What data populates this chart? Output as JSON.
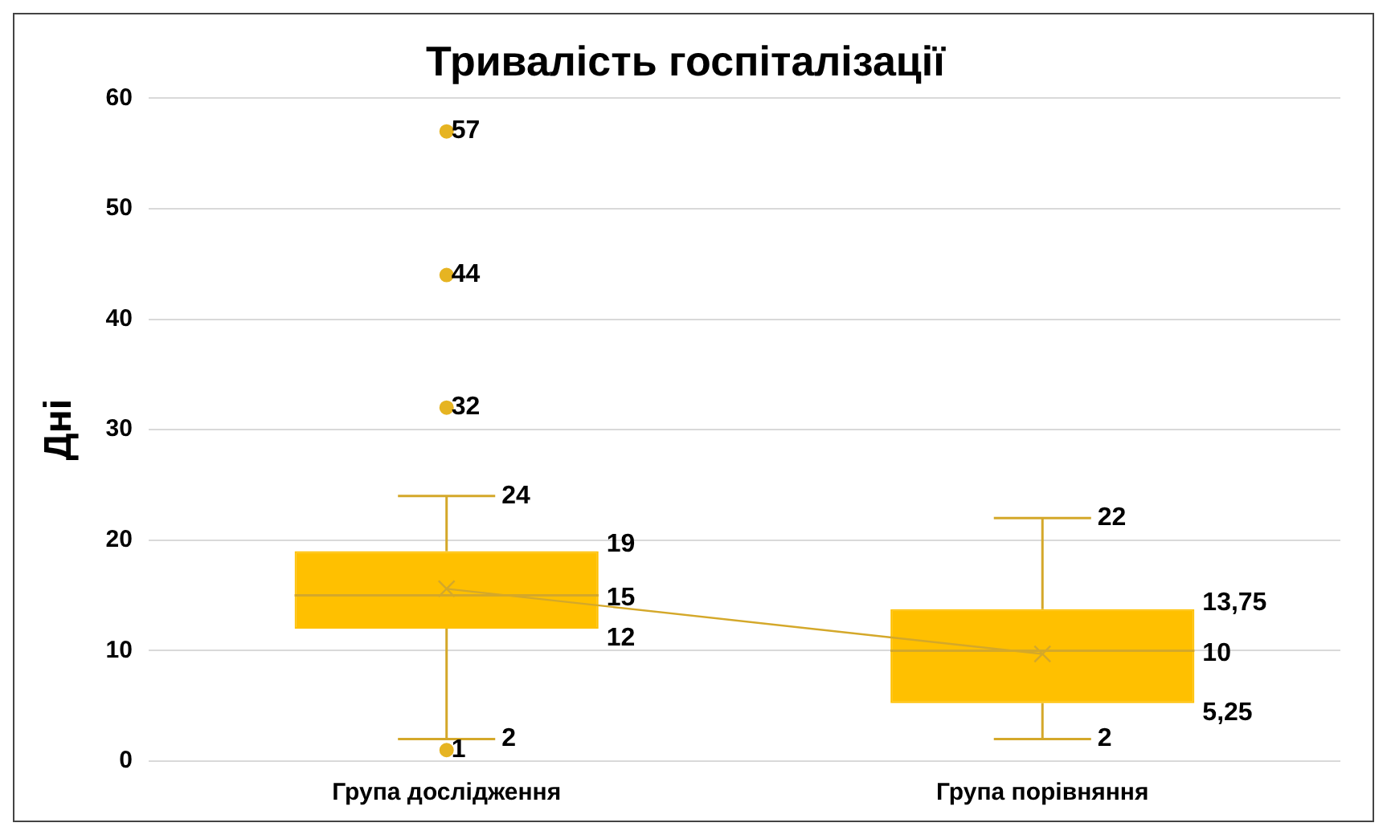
{
  "chart_data": {
    "type": "box",
    "title": "Тривалість госпіталізації",
    "ylabel": "Дні",
    "categories": [
      "Група дослідження",
      "Група порівняння"
    ],
    "color": "#ffc000",
    "boxes": [
      {
        "low": 2,
        "q1": 12,
        "median": 15,
        "q3": 19,
        "high": 24
      },
      {
        "low": 2,
        "q1": 5.25,
        "median": 10,
        "q3": 13.75,
        "high": 22
      }
    ],
    "series": [
      {
        "type": "scatter",
        "color": "#e6b422",
        "marker": "circle",
        "x": [
          "Група дослідження",
          "Група дослідження",
          "Група дослідження",
          "Група дослідження"
        ],
        "values": [
          57,
          44,
          32,
          1
        ],
        "value_labels": [
          "57",
          "44",
          "32",
          "1"
        ]
      },
      {
        "type": "line",
        "color": "#d4a82a",
        "values": [
          15.6,
          9.7
        ],
        "marker": "cross"
      }
    ],
    "annotations": [
      {
        "text": "24",
        "x": "Група дослідження",
        "y": 24
      },
      "19",
      "15",
      "12",
      {
        "text": "2",
        "x": "Група дослідження",
        "y": 2
      },
      {
        "text": "22",
        "x": "Група порівняння",
        "y": 22
      },
      "13,75",
      "10",
      "5,25",
      {
        "text": "2",
        "x": "Група порівняння",
        "y": 2
      }
    ],
    "ylim": [
      0,
      60
    ],
    "yticks": [
      0,
      10,
      20,
      30,
      40,
      50,
      60
    ],
    "grid": "y",
    "legend": false
  }
}
